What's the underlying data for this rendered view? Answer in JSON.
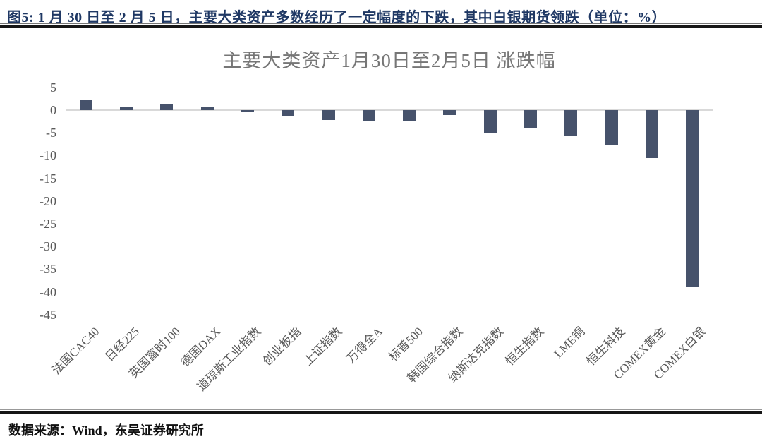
{
  "header": {
    "caption": "图5: 1 月 30 日至 2 月 5 日，主要大类资产多数经历了一定幅度的下跌，其中白银期货领跌（单位：%）"
  },
  "footer": {
    "source": "数据来源：Wind，东吴证券研究所"
  },
  "chart_data": {
    "type": "bar",
    "title": "主要大类资产1月30日至2月5日 涨跌幅",
    "categories": [
      "法国CAC40",
      "日经225",
      "英国富时100",
      "德国DAX",
      "道琼斯工业指数",
      "创业板指",
      "上证指数",
      "万得全A",
      "标普500",
      "韩国综合指数",
      "纳斯达克指数",
      "恒生指数",
      "LME铜",
      "恒生科技",
      "COMEX黄金",
      "COMEX白银"
    ],
    "values": [
      2.1,
      0.7,
      1.2,
      0.7,
      -0.3,
      -1.4,
      -2.1,
      -2.4,
      -2.5,
      -1.1,
      -5.0,
      -3.9,
      -5.8,
      -7.8,
      -10.5,
      -38.8
    ],
    "xlabel": "",
    "ylabel": "",
    "yticks": [
      5,
      0,
      -5,
      -10,
      -15,
      -20,
      -25,
      -30,
      -35,
      -40,
      -45
    ],
    "ylim": [
      -47,
      6
    ],
    "grid": false,
    "legend": "none",
    "bar_color": "#46526B",
    "zero_line_color": "#D9D9D9"
  }
}
